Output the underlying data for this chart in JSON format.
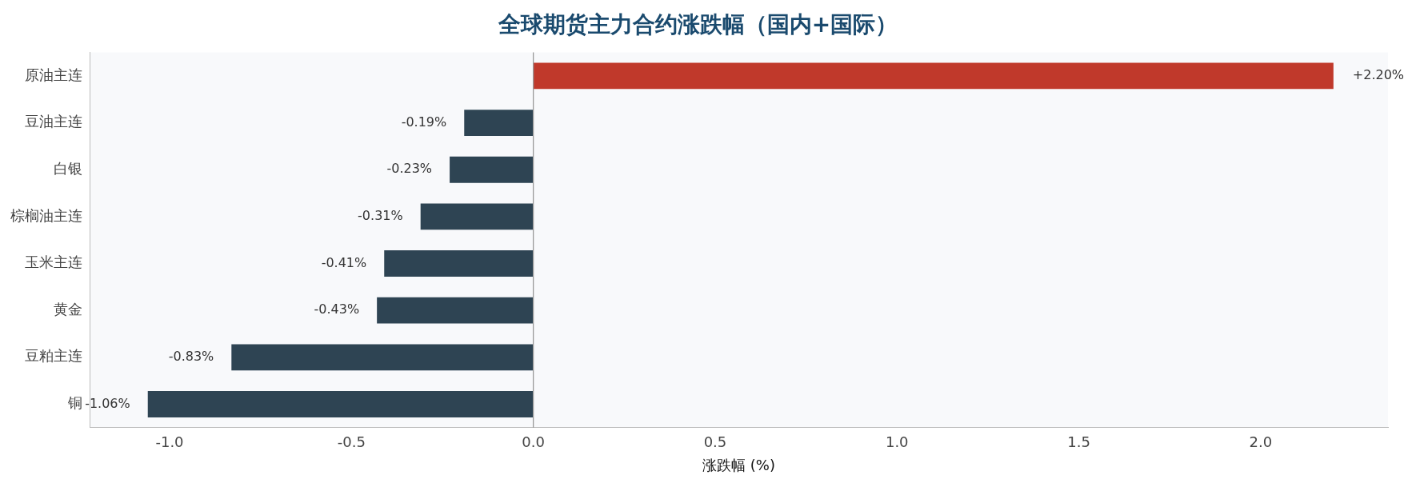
{
  "chart_data": {
    "type": "bar",
    "orientation": "horizontal",
    "title": "全球期货主力合约涨跌幅（国内+国际）",
    "xlabel": "涨跌幅 (%)",
    "categories": [
      "原油主连",
      "豆油主连",
      "白银",
      "棕榈油主连",
      "玉米主连",
      "黄金",
      "豆粕主连",
      "铜"
    ],
    "values": [
      2.2,
      -0.19,
      -0.23,
      -0.31,
      -0.41,
      -0.43,
      -0.83,
      -1.06
    ],
    "colors": [
      "#c0392b",
      "#2e4453",
      "#2e4453",
      "#2e4453",
      "#2e4453",
      "#2e4453",
      "#2e4453",
      "#2e4453"
    ],
    "value_labels": [
      "+2.20%",
      "-0.19%",
      "-0.23%",
      "-0.31%",
      "-0.41%",
      "-0.43%",
      "-0.83%",
      "-1.06%"
    ],
    "xlim": [
      -1.22,
      2.35
    ],
    "xticks": [
      {
        "value": -1.0,
        "label": "-1.0"
      },
      {
        "value": -0.5,
        "label": "-0.5"
      },
      {
        "value": 0,
        "label": "0.0"
      },
      {
        "value": 0.5,
        "label": "0.5"
      },
      {
        "value": 1.0,
        "label": "1.0"
      },
      {
        "value": 1.5,
        "label": "1.5"
      },
      {
        "value": 2.0,
        "label": "2.0"
      }
    ],
    "ref_lines": [
      {
        "axis": "x",
        "value": 0,
        "color": "#999999"
      }
    ],
    "grid": false,
    "legend": false
  }
}
